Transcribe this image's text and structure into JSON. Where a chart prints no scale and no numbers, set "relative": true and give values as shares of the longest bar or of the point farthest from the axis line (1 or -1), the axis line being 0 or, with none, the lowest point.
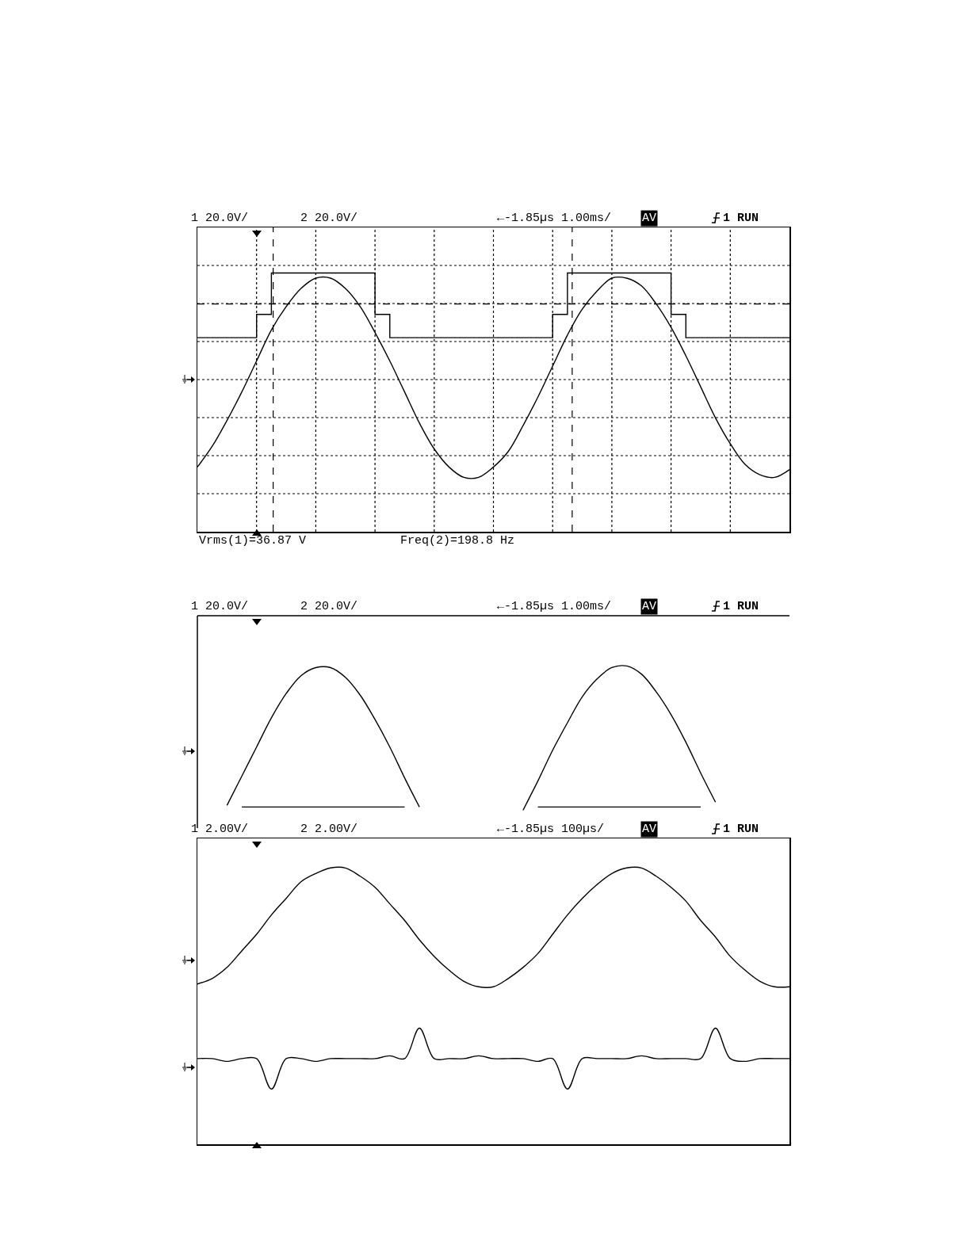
{
  "chart_data": [
    {
      "type": "line",
      "relative": true,
      "grid": true,
      "categories": [
        null,
        null,
        null,
        null,
        null,
        null,
        null,
        null,
        null,
        null,
        null,
        null,
        null,
        null,
        null,
        null,
        null,
        null,
        null,
        null,
        null,
        null,
        null,
        null,
        null,
        null,
        null,
        null,
        null,
        null,
        null,
        null,
        null,
        null,
        null,
        null,
        null,
        null,
        null,
        null,
        null
      ],
      "series": [
        {
          "color": "#000000",
          "values": [
            0.25,
            0.33,
            0.43,
            0.54,
            0.66,
            0.78,
            0.87,
            0.94,
            0.98,
            0.98,
            0.94,
            0.87,
            0.77,
            0.66,
            0.54,
            0.42,
            0.32,
            0.25,
            0.21,
            0.21,
            0.25,
            0.31,
            0.41,
            0.52,
            0.64,
            0.76,
            0.86,
            0.93,
            0.98,
            0.98,
            0.95,
            0.88,
            0.79,
            0.68,
            0.56,
            0.44,
            0.34,
            0.26,
            0.22,
            0.21,
            0.24
          ]
        },
        {
          "type": "step",
          "color": "#000000",
          "values": [
            0.75,
            0.75,
            0.75,
            0.75,
            0.84,
            1.0,
            1.0,
            1.0,
            1.0,
            1.0,
            1.0,
            1.0,
            0.84,
            0.75,
            0.75,
            0.75,
            0.75,
            0.75,
            0.75,
            0.75,
            0.75,
            0.75,
            0.75,
            0.75,
            0.84,
            1.0,
            1.0,
            1.0,
            1.0,
            1.0,
            1.0,
            1.0,
            0.84,
            0.75,
            0.75,
            0.75,
            0.75,
            0.75,
            0.75,
            0.75,
            0.75
          ]
        }
      ],
      "ref_lines": [
        {
          "axis": "y",
          "value": 0.88,
          "line_style": "dashed"
        }
      ],
      "annotations": [
        "1 20.0V/",
        "2 20.0V/",
        "←-1.85µs 1.00ms/",
        "AV",
        "1 RUN",
        "Vrms(1)=36.87 V",
        "Freq(2)=198.8 Hz"
      ]
    },
    {
      "type": "line",
      "relative": true,
      "categories": [
        null,
        null,
        null,
        null,
        null,
        null,
        null,
        null,
        null,
        null,
        null,
        null,
        null,
        null,
        null,
        null,
        null,
        null,
        null,
        null,
        null,
        null,
        null,
        null,
        null,
        null,
        null,
        null,
        null,
        null,
        null,
        null,
        null,
        null,
        null,
        null,
        null,
        null,
        null,
        null,
        null
      ],
      "series": [
        {
          "color": "#000000",
          "values": [
            null,
            null,
            0.14,
            0.32,
            0.5,
            0.68,
            0.83,
            0.94,
            0.99,
            0.99,
            0.93,
            0.82,
            0.67,
            0.5,
            0.31,
            0.13,
            null,
            null,
            null,
            null,
            null,
            null,
            0.11,
            0.29,
            0.48,
            0.65,
            0.81,
            0.92,
            0.99,
            1.0,
            0.95,
            0.84,
            0.7,
            0.53,
            0.34,
            0.16,
            null,
            null,
            null,
            null,
            null
          ]
        },
        {
          "type": "step",
          "color": "#000000",
          "values": [
            null,
            null,
            null,
            0.13,
            0.13,
            0.13,
            0.13,
            0.13,
            0.13,
            0.13,
            0.13,
            0.13,
            0.13,
            0.13,
            0.13,
            null,
            null,
            null,
            null,
            null,
            null,
            null,
            null,
            0.13,
            0.13,
            0.13,
            0.13,
            0.13,
            0.13,
            0.13,
            0.13,
            0.13,
            0.13,
            0.13,
            0.13,
            null,
            null,
            null,
            null,
            null,
            null
          ]
        }
      ],
      "annotations": [
        "1 20.0V/",
        "2 20.0V/",
        "←-1.85µs 1.00ms/",
        "AV",
        "1 RUN"
      ]
    },
    {
      "type": "line",
      "relative": true,
      "categories": [
        null,
        null,
        null,
        null,
        null,
        null,
        null,
        null,
        null,
        null,
        null,
        null,
        null,
        null,
        null,
        null,
        null,
        null,
        null,
        null,
        null,
        null,
        null,
        null,
        null,
        null,
        null,
        null,
        null,
        null,
        null,
        null,
        null,
        null,
        null,
        null,
        null,
        null,
        null,
        null,
        null
      ],
      "series": [
        {
          "color": "#000000",
          "values": [
            0.58,
            0.6,
            0.64,
            0.7,
            0.76,
            0.83,
            0.89,
            0.95,
            0.98,
            1.0,
            1.0,
            0.97,
            0.93,
            0.87,
            0.81,
            0.74,
            0.68,
            0.63,
            0.59,
            0.57,
            0.57,
            0.6,
            0.64,
            0.69,
            0.76,
            0.83,
            0.89,
            0.94,
            0.98,
            1.0,
            1.0,
            0.97,
            0.93,
            0.88,
            0.81,
            0.75,
            0.68,
            0.63,
            0.59,
            0.57,
            0.57
          ]
        },
        {
          "color": "#000000",
          "values": [
            0.31,
            0.31,
            0.3,
            0.31,
            0.31,
            0.2,
            0.31,
            0.31,
            0.3,
            0.31,
            0.31,
            0.31,
            0.31,
            0.32,
            0.31,
            0.42,
            0.31,
            0.31,
            0.31,
            0.32,
            0.31,
            0.31,
            0.31,
            0.3,
            0.31,
            0.2,
            0.31,
            0.31,
            0.31,
            0.31,
            0.32,
            0.31,
            0.31,
            0.31,
            0.31,
            0.42,
            0.31,
            0.3,
            0.31,
            0.31,
            0.31
          ]
        }
      ],
      "annotations": [
        "1 2.00V/",
        "2 2.00V/",
        "←-1.85µs 100µs/",
        "AV",
        "1 RUN"
      ]
    }
  ]
}
